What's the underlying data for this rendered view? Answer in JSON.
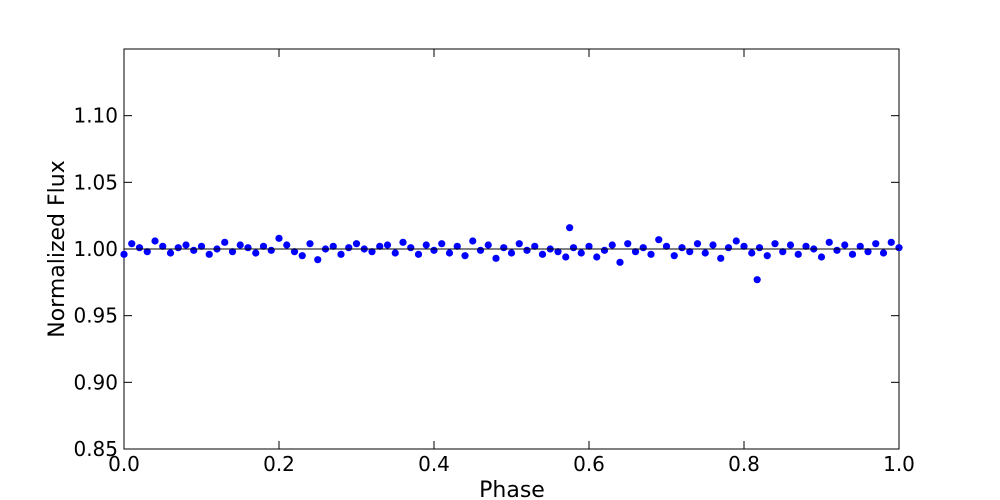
{
  "chart_data": {
    "type": "scatter",
    "xlabel": "Phase",
    "ylabel": "Normalized Flux",
    "xlim": [
      0,
      1
    ],
    "ylim": [
      0.85,
      1.15
    ],
    "xticks": [
      {
        "value": 0,
        "label": "0.0"
      },
      0.2,
      0.4,
      0.6,
      0.8,
      {
        "value": 1,
        "label": "1.0"
      }
    ],
    "yticks": [
      0.85,
      {
        "value": 0.9,
        "label": "0.90"
      },
      0.95,
      {
        "value": 1,
        "label": "1.00"
      },
      1.05,
      {
        "value": 1.1,
        "label": "1.10"
      }
    ],
    "series": [
      {
        "name": "data",
        "color": "#0000ff",
        "x": [
          0.0,
          0.01,
          0.02,
          0.03,
          0.04,
          0.05,
          0.06,
          0.07,
          0.08,
          0.09,
          0.1,
          0.11,
          0.12,
          0.13,
          0.14,
          0.15,
          0.16,
          0.17,
          0.18,
          0.19,
          0.2,
          0.21,
          0.22,
          0.23,
          0.24,
          0.25,
          0.26,
          0.27,
          0.28,
          0.29,
          0.3,
          0.31,
          0.32,
          0.33,
          0.34,
          0.35,
          0.36,
          0.37,
          0.38,
          0.39,
          0.4,
          0.41,
          0.42,
          0.43,
          0.44,
          0.45,
          0.46,
          0.47,
          0.48,
          0.49,
          0.5,
          0.51,
          0.52,
          0.53,
          0.54,
          0.55,
          0.56,
          0.57,
          0.58,
          0.59,
          0.6,
          0.61,
          0.62,
          0.63,
          0.64,
          0.65,
          0.66,
          0.67,
          0.68,
          0.69,
          0.7,
          0.71,
          0.72,
          0.73,
          0.74,
          0.75,
          0.76,
          0.77,
          0.78,
          0.79,
          0.8,
          0.81,
          0.82,
          0.83,
          0.84,
          0.85,
          0.86,
          0.87,
          0.88,
          0.89,
          0.9,
          0.91,
          0.92,
          0.93,
          0.94,
          0.95,
          0.96,
          0.97,
          0.98,
          0.99,
          1.0,
          0.575,
          0.817
        ],
        "values": [
          0.996,
          1.004,
          1.001,
          0.998,
          1.006,
          1.002,
          0.997,
          1.001,
          1.003,
          0.999,
          1.002,
          0.996,
          1.0,
          1.005,
          0.998,
          1.003,
          1.001,
          0.997,
          1.002,
          0.999,
          1.008,
          1.003,
          0.998,
          0.995,
          1.004,
          0.992,
          1.0,
          1.002,
          0.996,
          1.001,
          1.004,
          1.0,
          0.998,
          1.002,
          1.003,
          0.997,
          1.005,
          1.001,
          0.996,
          1.003,
          0.999,
          1.004,
          0.997,
          1.002,
          0.995,
          1.006,
          0.999,
          1.003,
          0.993,
          1.001,
          0.997,
          1.004,
          0.999,
          1.002,
          0.996,
          1.0,
          0.998,
          0.994,
          1.001,
          0.997,
          1.002,
          0.994,
          0.999,
          1.003,
          0.99,
          1.004,
          0.998,
          1.001,
          0.996,
          1.007,
          1.002,
          0.995,
          1.001,
          0.998,
          1.004,
          0.997,
          1.003,
          0.993,
          1.001,
          1.006,
          1.002,
          0.997,
          1.001,
          0.995,
          1.004,
          0.998,
          1.003,
          0.996,
          1.002,
          1.0,
          0.994,
          1.005,
          0.999,
          1.003,
          0.996,
          1.002,
          0.998,
          1.004,
          0.997,
          1.005,
          1.001,
          1.016,
          0.977
        ]
      },
      {
        "name": "model",
        "color": "#000000",
        "x": [
          0,
          1
        ],
        "values": [
          1,
          1
        ]
      }
    ]
  }
}
